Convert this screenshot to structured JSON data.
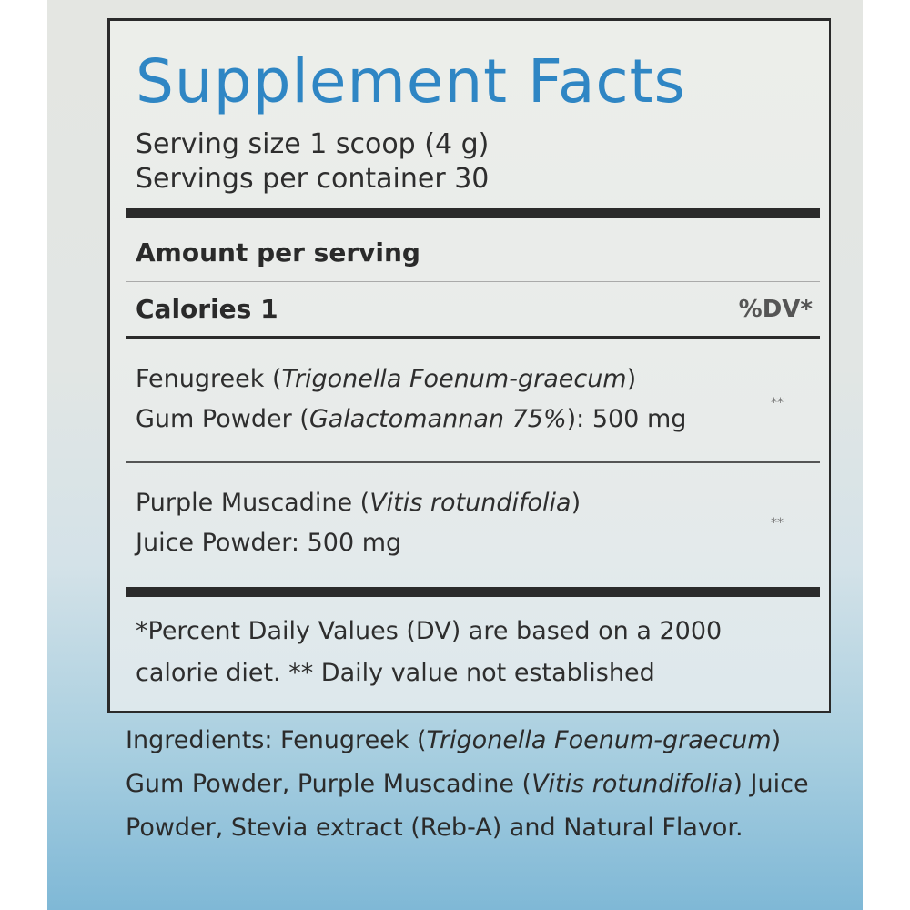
{
  "label": {
    "title": "Supplement Facts",
    "serving_size": "Serving size 1 scoop (4 g)",
    "servings_per_container": "Servings per container 30",
    "amount_per_serving": "Amount per serving",
    "calories": "Calories 1",
    "dv_header": "%DV*",
    "items": [
      {
        "name": "Fenugreek (",
        "latin": "Trigonella Foenum-graecum",
        "close": ")",
        "line2": "Gum Powder (",
        "latin2": "Galactomannan 75%",
        "amount": "): 500 mg",
        "dv": "**"
      },
      {
        "name": "Purple Muscadine (",
        "latin": "Vitis rotundifolia",
        "close": ")",
        "line2": "Juice Powder: 500 mg",
        "dv": "**"
      }
    ],
    "footnote_line1": "*Percent Daily Values (DV) are based on a 2000",
    "footnote_line2": "calorie diet. ** Daily value not established"
  },
  "ingredients": {
    "p1": "Ingredients: Fenugreek (",
    "i1": "Trigonella Foenum-graecum",
    "p2": ") Gum Powder, Purple Muscadine (",
    "i2": "Vitis rotundifolia",
    "p3": ") Juice Powder, Stevia extract (Reb-A) and Natural Flavor."
  },
  "colors": {
    "title": "#2f86c4",
    "text": "#2e2e2e"
  }
}
